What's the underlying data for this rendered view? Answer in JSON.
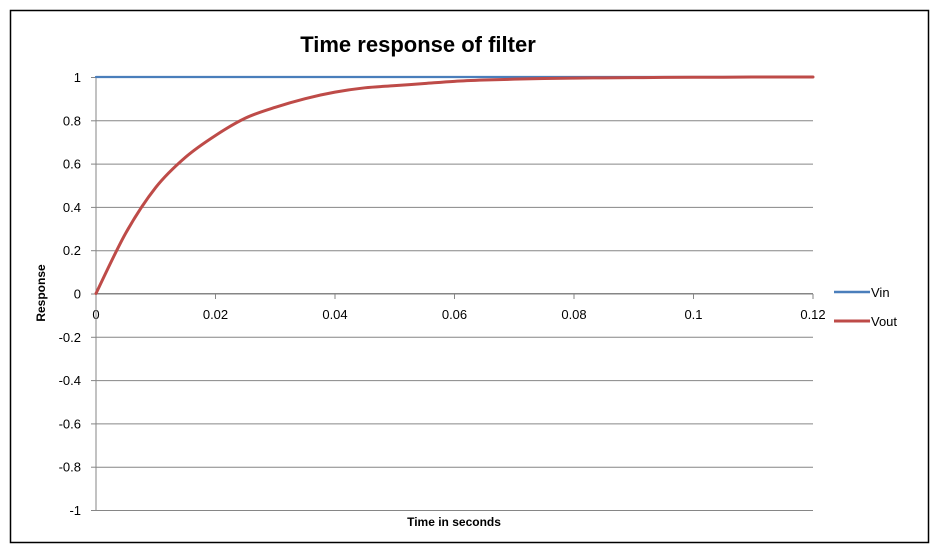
{
  "chart_data": {
    "type": "line",
    "title": "Time response of filter",
    "xlabel": "Time in seconds",
    "ylabel": "Response",
    "xlim": [
      0,
      0.12
    ],
    "ylim": [
      -1,
      1
    ],
    "x_ticks": [
      "0",
      "0.02",
      "0.04",
      "0.06",
      "0.08",
      "0.1",
      "0.12"
    ],
    "y_ticks": [
      "1",
      "0.8",
      "0.6",
      "0.4",
      "0.2",
      "0",
      "-0.2",
      "-0.4",
      "-0.6",
      "-0.8",
      "-1"
    ],
    "grid": "horizontal",
    "legend_position": "right",
    "series": [
      {
        "name": "Vin",
        "color": "#4a7ebb",
        "x": [
          0,
          0.12
        ],
        "y": [
          1,
          1
        ]
      },
      {
        "name": "Vout",
        "color": "#be4b48",
        "x": [
          0,
          0.005,
          0.01,
          0.015,
          0.02,
          0.025,
          0.03,
          0.035,
          0.04,
          0.045,
          0.05,
          0.055,
          0.06,
          0.065,
          0.07,
          0.075,
          0.08,
          0.085,
          0.09,
          0.095,
          0.1,
          0.105,
          0.11,
          0.115,
          0.12
        ],
        "y": [
          0,
          0.28,
          0.49,
          0.63,
          0.73,
          0.81,
          0.86,
          0.9,
          0.93,
          0.95,
          0.96,
          0.97,
          0.98,
          0.986,
          0.99,
          0.993,
          0.995,
          0.996,
          0.997,
          0.998,
          0.999,
          0.999,
          1,
          1,
          1
        ]
      }
    ]
  }
}
